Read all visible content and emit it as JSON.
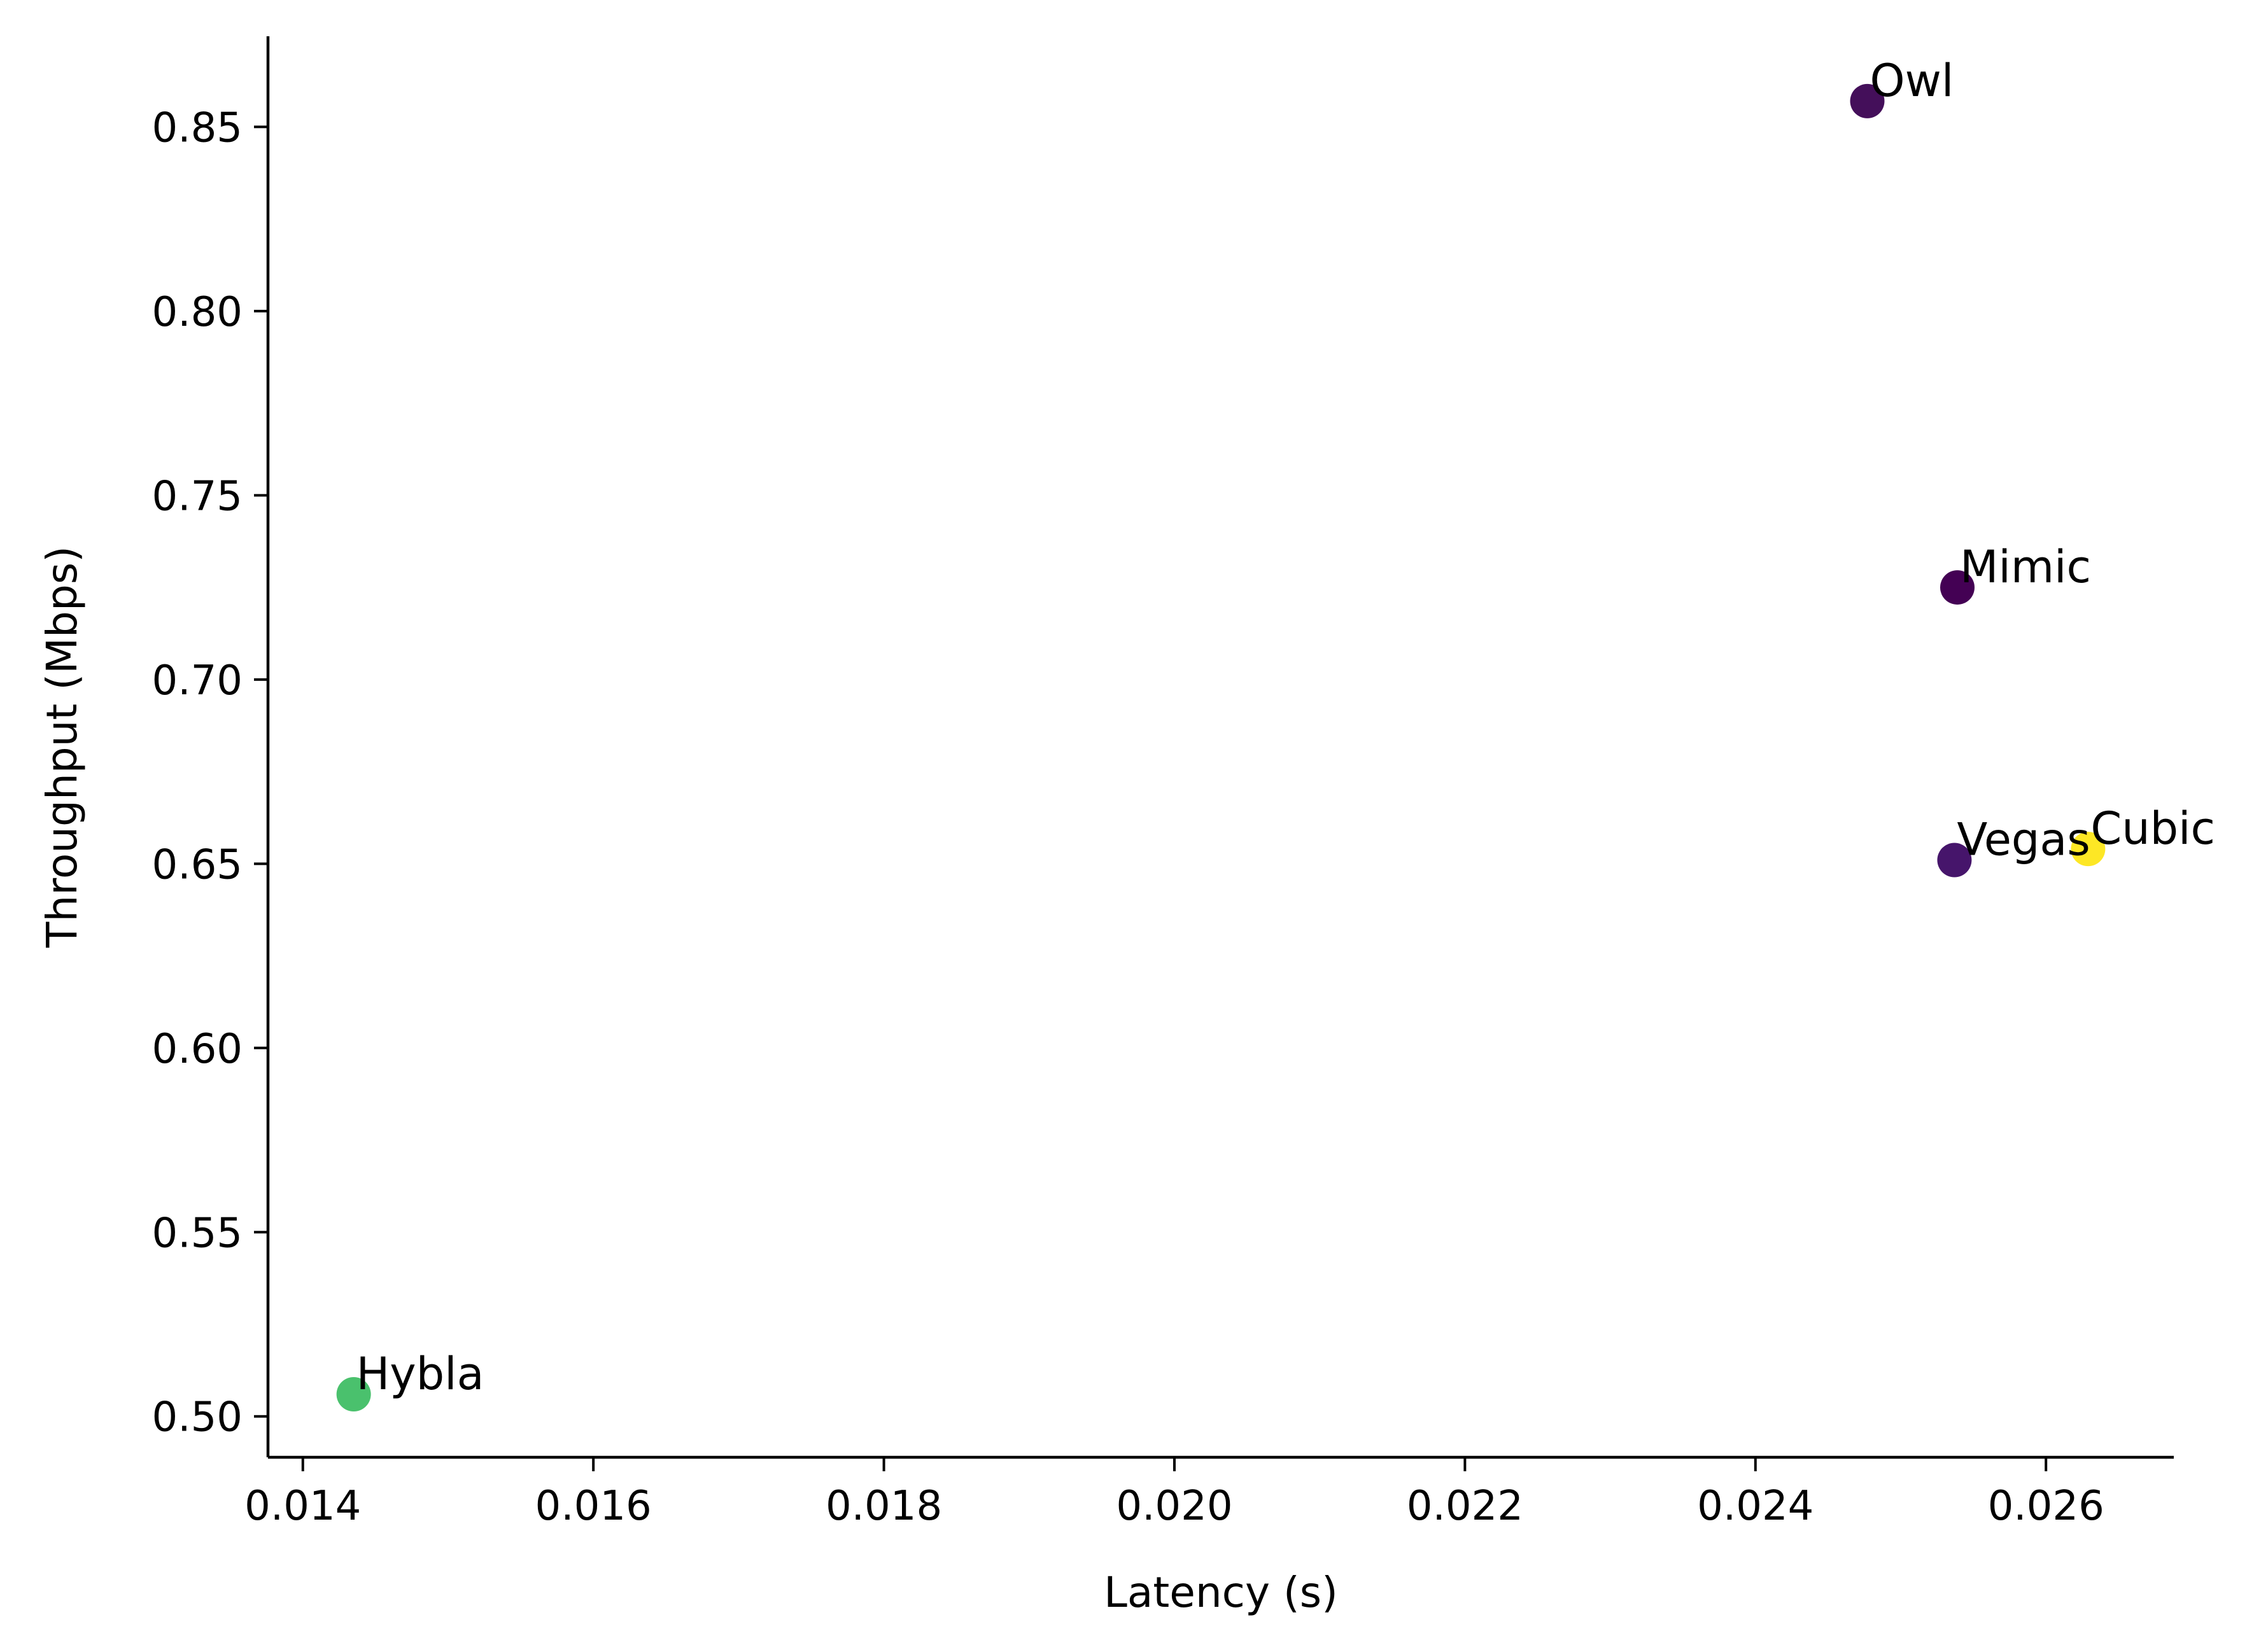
{
  "chart_data": {
    "type": "scatter",
    "title": "",
    "xlabel": "Latency (s)",
    "ylabel": "Throughput (Mbps)",
    "xlim": [
      0.01376,
      0.02688
    ],
    "ylim": [
      0.4889,
      0.8746
    ],
    "xticks": [
      "0.014",
      "0.016",
      "0.018",
      "0.020",
      "0.022",
      "0.024",
      "0.026"
    ],
    "yticks": [
      "0.50",
      "0.55",
      "0.60",
      "0.65",
      "0.70",
      "0.75",
      "0.80",
      "0.85"
    ],
    "grid": false,
    "legend": "none",
    "points": [
      {
        "label": "Owl",
        "x": 0.02477,
        "y": 0.857,
        "color": "#440f5a"
      },
      {
        "label": "Mimic",
        "x": 0.02539,
        "y": 0.725,
        "color": "#440154"
      },
      {
        "label": "Vegas",
        "x": 0.02537,
        "y": 0.651,
        "color": "#46156b"
      },
      {
        "label": "Cubic",
        "x": 0.02629,
        "y": 0.654,
        "color": "#fde725"
      },
      {
        "label": "Hybla",
        "x": 0.01435,
        "y": 0.506,
        "color": "#4ac16d"
      }
    ]
  }
}
